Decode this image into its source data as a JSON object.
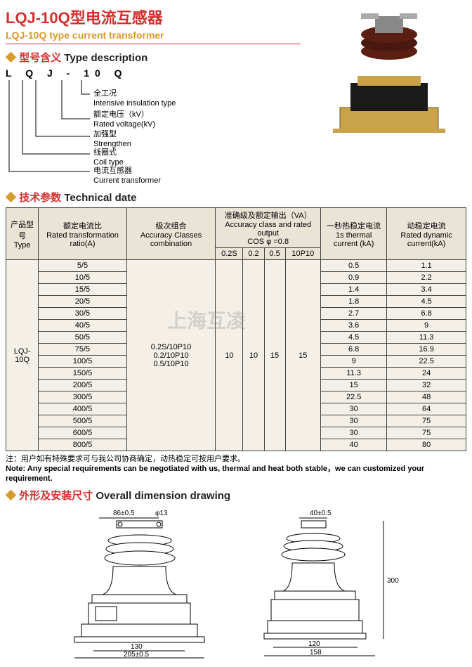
{
  "header": {
    "title_cn": "LQJ-10Q型电流互感器",
    "title_en": "LQJ-10Q type current transformer"
  },
  "type_description": {
    "section_cn": "型号含义",
    "section_en": "Type description",
    "letters": "L Q J - 10 Q",
    "items": [
      {
        "cn": "全工况",
        "en": "Intensive insulation type"
      },
      {
        "cn": "额定电压（kV）",
        "en": "Rated voltage(kV)"
      },
      {
        "cn": "加强型",
        "en": "Strengthen"
      },
      {
        "cn": "线圈式",
        "en": "Coil type"
      },
      {
        "cn": "电流互感器",
        "en": "Current transformer"
      }
    ]
  },
  "tech_section": {
    "section_cn": "技术参数",
    "section_en": "Technical date"
  },
  "table": {
    "headers": {
      "type_cn": "产品型号",
      "type_en": "Type",
      "ratio_cn": "额定电流比",
      "ratio_en": "Rated transformation ratio(A)",
      "acc_cn": "级次组合",
      "acc_en": "Accuracy Classes combination",
      "out_cn": "准确级及额定输出（VA）",
      "out_en": "Accuracy class and rated output",
      "cos": "COS φ =0.8",
      "out_sub": [
        "0.2S",
        "0.2",
        "0.5",
        "10P10"
      ],
      "thermal_cn": "一秒热稳定电流",
      "thermal_en": "1s thermal current (kA)",
      "dyn_cn": "动稳定电流",
      "dyn_en": "Rated dynamic current(kA)"
    },
    "type_value": "LQJ-10Q",
    "acc_values": [
      "0.2S/10P10",
      "0.2/10P10",
      "0.5/10P10"
    ],
    "out_values": {
      "c02s": "10",
      "c02": "10",
      "c05": "15",
      "c10p": "15"
    },
    "rows": [
      {
        "ratio": "5/5",
        "thermal": "0.5",
        "dyn": "1.1"
      },
      {
        "ratio": "10/5",
        "thermal": "0.9",
        "dyn": "2.2"
      },
      {
        "ratio": "15/5",
        "thermal": "1.4",
        "dyn": "3.4"
      },
      {
        "ratio": "20/5",
        "thermal": "1.8",
        "dyn": "4.5"
      },
      {
        "ratio": "30/5",
        "thermal": "2.7",
        "dyn": "6.8"
      },
      {
        "ratio": "40/5",
        "thermal": "3.6",
        "dyn": "9"
      },
      {
        "ratio": "50/5",
        "thermal": "4.5",
        "dyn": "11.3"
      },
      {
        "ratio": "75/5",
        "thermal": "6.8",
        "dyn": "16.9"
      },
      {
        "ratio": "100/5",
        "thermal": "9",
        "dyn": "22.5"
      },
      {
        "ratio": "150/5",
        "thermal": "11.3",
        "dyn": "24"
      },
      {
        "ratio": "200/5",
        "thermal": "15",
        "dyn": "32"
      },
      {
        "ratio": "300/5",
        "thermal": "22.5",
        "dyn": "48"
      },
      {
        "ratio": "400/5",
        "thermal": "30",
        "dyn": "64"
      },
      {
        "ratio": "500/5",
        "thermal": "30",
        "dyn": "75"
      },
      {
        "ratio": "600/5",
        "thermal": "30",
        "dyn": "75"
      },
      {
        "ratio": "800/5",
        "thermal": "40",
        "dyn": "80"
      }
    ]
  },
  "note": {
    "cn": "注：用户如有特殊要求可与我公司协商确定，动热稳定可按用户要求。",
    "en": "Note: Any special requirements can be negotiated with us, thermal and heat both stable，we can customized your requirement."
  },
  "drawing": {
    "section_cn": "外形及安装尺寸",
    "section_en": "Overall dimension drawing",
    "dims": {
      "d1": "86±0.5",
      "d2": "φ13",
      "d3": "40±0.5",
      "d4": "130",
      "d5": "205±0.5",
      "d6": "120",
      "d7": "158",
      "d8": "300"
    }
  },
  "watermark": "上海互凌",
  "colors": {
    "red": "#d32f2f",
    "gold": "#d69a2d",
    "table_bg": "#f4f0e8",
    "table_header": "#eae4d6"
  }
}
